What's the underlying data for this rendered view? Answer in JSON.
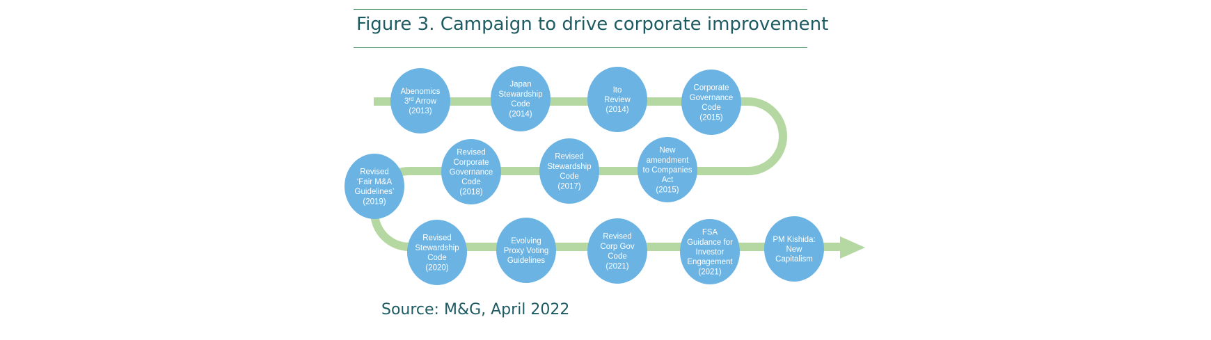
{
  "title": "Figure 3. Campaign to drive corporate improvement",
  "source": "Source: M&G, April 2022",
  "colors": {
    "path": "#b5d8a2",
    "node": "#6ab3e3",
    "node_text": "#ffffff",
    "title": "#1d5b63",
    "rule": "#4f9a6a"
  },
  "nodes": [
    {
      "id": "abenomics",
      "lines": [
        "Abenomics",
        "3rd Arrow",
        "(2013)"
      ]
    },
    {
      "id": "japan-stewardship",
      "lines": [
        "Japan",
        "Stewardship",
        "Code",
        "(2014)"
      ]
    },
    {
      "id": "ito-review",
      "lines": [
        "Ito",
        "Review",
        "(2014)"
      ]
    },
    {
      "id": "cgc-2015",
      "lines": [
        "Corporate",
        "Governance",
        "Code",
        "(2015)"
      ]
    },
    {
      "id": "companies-act",
      "lines": [
        "New",
        "amendment",
        "to Companies",
        "Act",
        "(2015)"
      ]
    },
    {
      "id": "rev-stewardship-2017",
      "lines": [
        "Revised",
        "Stewardship",
        "Code",
        "(2017)"
      ]
    },
    {
      "id": "rev-cgc-2018",
      "lines": [
        "Revised",
        "Corporate",
        "Governance",
        "Code",
        "(2018)"
      ]
    },
    {
      "id": "fair-ma-2019",
      "lines": [
        "Revised",
        "‘Fair M&A",
        "Guidelines’",
        "(2019)"
      ]
    },
    {
      "id": "rev-stewardship-2020",
      "lines": [
        "Revised",
        "Stewardship",
        "Code",
        "(2020)"
      ]
    },
    {
      "id": "proxy-voting",
      "lines": [
        "Evolving",
        "Proxy Voting",
        "Guidelines"
      ]
    },
    {
      "id": "rev-corpgov-2021",
      "lines": [
        "Revised",
        "Corp Gov",
        "Code",
        "(2021)"
      ]
    },
    {
      "id": "fsa-guidance",
      "lines": [
        "FSA",
        "Guidance for",
        "Investor",
        "Engagement",
        "(2021)"
      ]
    },
    {
      "id": "pm-kishida",
      "lines": [
        "PM Kishida:",
        "New",
        "Capitalism"
      ]
    }
  ]
}
